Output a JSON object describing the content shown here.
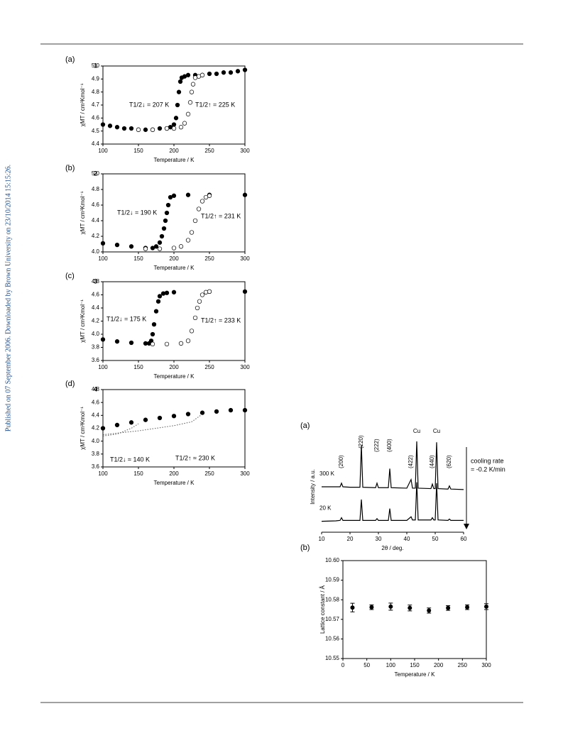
{
  "sidebar": "Published on 07 September 2006. Downloaded by Brown University on 23/10/2014 15:15:26.",
  "chart_data": [
    {
      "type": "scatter",
      "label": "(a)",
      "compound": "1",
      "x_label": "Temperature / K",
      "y_label": "χMT / cm³Kmol⁻¹",
      "xlim": [
        100,
        300
      ],
      "xticks": [
        100,
        150,
        200,
        250,
        300
      ],
      "ylim": [
        4.4,
        5.0
      ],
      "yticks": [
        4.4,
        4.5,
        4.6,
        4.7,
        4.8,
        4.9,
        {
          "value": 5.0,
          "label": "5.0"
        }
      ],
      "annotations": [
        "T1/2↓ = 207 K",
        "T1/2↑ = 225 K"
      ],
      "series": [
        {
          "marker": "filled",
          "color": "#000000",
          "x": [
            100,
            110,
            120,
            130,
            140,
            150,
            160,
            170,
            180,
            190,
            195,
            200,
            203,
            205,
            207,
            209,
            211,
            215,
            220,
            230,
            240,
            250,
            260,
            270,
            280,
            290,
            300
          ],
          "values": [
            4.55,
            4.54,
            4.53,
            4.52,
            4.52,
            4.51,
            4.51,
            4.51,
            4.52,
            4.52,
            4.53,
            4.55,
            4.6,
            4.7,
            4.8,
            4.88,
            4.91,
            4.92,
            4.93,
            4.93,
            4.93,
            4.94,
            4.94,
            4.95,
            4.95,
            4.96,
            4.97
          ]
        },
        {
          "marker": "open",
          "color": "#000000",
          "x": [
            150,
            170,
            190,
            200,
            210,
            215,
            220,
            223,
            225,
            227,
            230,
            235,
            240
          ],
          "values": [
            4.51,
            4.51,
            4.52,
            4.52,
            4.53,
            4.56,
            4.63,
            4.72,
            4.8,
            4.86,
            4.91,
            4.92,
            4.93
          ]
        }
      ]
    },
    {
      "type": "scatter",
      "label": "(b)",
      "compound": "2",
      "x_label": "Temperature / K",
      "y_label": "χMT / cm³Kmol⁻¹",
      "xlim": [
        100,
        300
      ],
      "xticks": [
        100,
        150,
        200,
        250,
        300
      ],
      "ylim": [
        4.0,
        5.0
      ],
      "yticks": [
        {
          "value": 4.0,
          "label": "4.0"
        },
        4.2,
        4.4,
        4.6,
        4.8,
        {
          "value": 5.0,
          "label": "5.0"
        }
      ],
      "annotations": [
        "T1/2↓ = 190 K",
        "T1/2↑ = 231 K"
      ],
      "series": [
        {
          "marker": "filled",
          "color": "#000000",
          "x": [
            100,
            120,
            140,
            160,
            170,
            175,
            180,
            183,
            186,
            188,
            190,
            192,
            195,
            200,
            220,
            250,
            300
          ],
          "values": [
            4.11,
            4.09,
            4.07,
            4.05,
            4.05,
            4.07,
            4.12,
            4.2,
            4.3,
            4.4,
            4.5,
            4.6,
            4.7,
            4.72,
            4.73,
            4.73,
            4.73
          ]
        },
        {
          "marker": "open",
          "color": "#000000",
          "x": [
            160,
            180,
            200,
            210,
            220,
            225,
            230,
            235,
            240,
            245,
            250
          ],
          "values": [
            4.04,
            4.04,
            4.05,
            4.07,
            4.15,
            4.25,
            4.4,
            4.55,
            4.65,
            4.7,
            4.72
          ]
        }
      ]
    },
    {
      "type": "scatter",
      "label": "(c)",
      "compound": "3",
      "x_label": "Temperature / K",
      "y_label": "χMT / cm³Kmol⁻¹",
      "xlim": [
        100,
        300
      ],
      "xticks": [
        100,
        150,
        200,
        250,
        300
      ],
      "ylim": [
        3.6,
        4.8
      ],
      "yticks": [
        3.6,
        3.8,
        {
          "value": 4.0,
          "label": "4.0"
        },
        4.2,
        4.4,
        4.6,
        4.8
      ],
      "annotations": [
        "T1/2↓ = 175 K",
        "T1/2↑ = 233 K"
      ],
      "series": [
        {
          "marker": "filled",
          "color": "#000000",
          "x": [
            100,
            120,
            140,
            160,
            165,
            168,
            170,
            172,
            175,
            178,
            180,
            185,
            190,
            200,
            250,
            300
          ],
          "values": [
            3.92,
            3.89,
            3.87,
            3.86,
            3.86,
            3.9,
            4.0,
            4.15,
            4.35,
            4.5,
            4.58,
            4.62,
            4.63,
            4.64,
            4.65,
            4.65
          ]
        },
        {
          "marker": "open",
          "color": "#000000",
          "x": [
            170,
            190,
            210,
            220,
            225,
            230,
            233,
            236,
            240,
            245,
            250
          ],
          "values": [
            3.85,
            3.85,
            3.86,
            3.9,
            4.05,
            4.25,
            4.4,
            4.5,
            4.6,
            4.64,
            4.65
          ]
        }
      ]
    },
    {
      "type": "scatter",
      "label": "(d)",
      "compound": "4",
      "x_label": "Temperature / K",
      "y_label": "χMT / cm³Kmol⁻¹",
      "xlim": [
        100,
        300
      ],
      "xticks": [
        100,
        150,
        200,
        250,
        300
      ],
      "ylim": [
        3.6,
        4.8
      ],
      "yticks": [
        3.6,
        3.8,
        {
          "value": 4.0,
          "label": "4.0"
        },
        4.2,
        4.4,
        4.6,
        4.8
      ],
      "annotations": [
        "T1/2↓ ≈ 140 K",
        "T1/2↑ ≈ 230 K"
      ],
      "series": [
        {
          "marker": "filled",
          "color": "#000000",
          "x": [
            100,
            120,
            140,
            160,
            180,
            200,
            220,
            240,
            260,
            280,
            300
          ],
          "values": [
            4.2,
            4.25,
            4.29,
            4.33,
            4.36,
            4.39,
            4.42,
            4.44,
            4.46,
            4.48,
            4.48
          ]
        },
        {
          "marker": "dotted",
          "color": "#555555",
          "x": [
            100,
            120,
            140,
            150
          ],
          "values": [
            4.08,
            4.11,
            4.2,
            4.27
          ]
        },
        {
          "marker": "dotted",
          "color": "#555555",
          "x": [
            100,
            150,
            200,
            225,
            240
          ],
          "values": [
            4.1,
            4.16,
            4.24,
            4.3,
            4.42
          ]
        }
      ]
    },
    {
      "type": "line",
      "label": "(a)",
      "x_label": "2θ / deg.",
      "y_label": "Intensity / a.u.",
      "xlim": [
        10,
        60
      ],
      "xticks": [
        10,
        20,
        30,
        40,
        50,
        60
      ],
      "ylim": [
        0,
        10
      ],
      "annotation": [
        "cooling rate",
        "= -0.2 K/min"
      ],
      "peak_labels": [
        {
          "label": "(200)",
          "x": 17
        },
        {
          "label": "(220)",
          "x": 24
        },
        {
          "label": "(222)",
          "x": 29.5
        },
        {
          "label": "(400)",
          "x": 34
        },
        {
          "label": "(422)",
          "x": 41.5
        },
        {
          "label": "Cu",
          "x": 43.5
        },
        {
          "label": "(440)",
          "x": 49
        },
        {
          "label": "Cu",
          "x": 50.5
        },
        {
          "label": "(620)",
          "x": 55
        }
      ],
      "x": [
        10,
        15,
        16.5,
        17,
        17.5,
        20,
        23.5,
        24,
        24.5,
        29,
        29.5,
        30,
        33.5,
        34,
        34.5,
        40,
        41.5,
        42,
        43,
        43.5,
        44,
        48.5,
        49,
        49.5,
        50,
        50.5,
        51,
        54.5,
        55,
        55.5,
        60
      ],
      "series": [
        {
          "name": "300 K",
          "color": "#000000",
          "values": [
            5.0,
            5.0,
            5.0,
            5.4,
            5.0,
            4.95,
            4.95,
            9.6,
            4.95,
            4.9,
            5.4,
            4.9,
            4.9,
            7.0,
            4.9,
            4.85,
            5.8,
            4.85,
            4.85,
            10.0,
            4.85,
            4.8,
            5.3,
            4.8,
            4.8,
            9.9,
            4.8,
            4.75,
            5.1,
            4.75,
            4.7
          ]
        },
        {
          "name": "20 K",
          "color": "#000000",
          "values": [
            1.2,
            1.25,
            1.3,
            1.6,
            1.3,
            1.3,
            1.3,
            3.6,
            1.3,
            1.3,
            1.5,
            1.3,
            1.3,
            2.6,
            1.3,
            1.3,
            1.7,
            1.35,
            1.35,
            5.5,
            1.35,
            1.35,
            1.6,
            1.35,
            1.35,
            5.4,
            1.35,
            1.3,
            1.45,
            1.3,
            1.3
          ]
        }
      ]
    },
    {
      "type": "errorbar",
      "label": "(b)",
      "x_label": "Temperature / K",
      "y_label": "Lattice constant / Å",
      "xlim": [
        0,
        300
      ],
      "xticks": [
        0,
        50,
        100,
        150,
        200,
        250,
        300
      ],
      "ylim": [
        10.55,
        10.6
      ],
      "yticks": [
        10.55,
        10.56,
        10.57,
        10.58,
        10.59,
        {
          "value": 10.6,
          "label": "10.60"
        }
      ],
      "x": [
        20,
        60,
        100,
        140,
        180,
        220,
        260,
        300
      ],
      "values": [
        10.576,
        10.5762,
        10.5765,
        10.5758,
        10.5745,
        10.5758,
        10.5762,
        10.5765
      ],
      "errors": [
        0.0022,
        0.0012,
        0.0018,
        0.0015,
        0.0013,
        0.0012,
        0.0012,
        0.0015
      ],
      "color": "#000000"
    }
  ]
}
